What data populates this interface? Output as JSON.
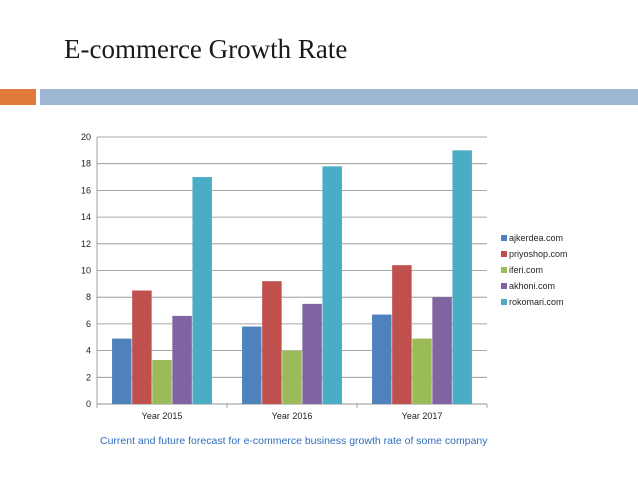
{
  "slide": {
    "title": "E-commerce Growth Rate",
    "caption": "Current and future forecast for e-commerce business growth rate of some company"
  },
  "colors": {
    "accent_orange": "#e07b39",
    "accent_blue": "#9db6d4",
    "caption": "#2f6ebd"
  },
  "chart_data": {
    "type": "bar",
    "categories": [
      "Year 2015",
      "Year 2016",
      "Year 2017"
    ],
    "series": [
      {
        "name": "ajkerdea.com",
        "color": "#4f81bd",
        "values": [
          4.9,
          5.8,
          6.7
        ]
      },
      {
        "name": "priyoshop.com",
        "color": "#c0504d",
        "values": [
          8.5,
          9.2,
          10.4
        ]
      },
      {
        "name": "iferi.com",
        "color": "#9bbb59",
        "values": [
          3.3,
          4.0,
          4.9
        ]
      },
      {
        "name": "akhoni.com",
        "color": "#8064a2",
        "values": [
          6.6,
          7.5,
          8.0
        ]
      },
      {
        "name": "rokomari.com",
        "color": "#4bacc6",
        "values": [
          17.0,
          17.8,
          19.0
        ]
      }
    ],
    "yticks": [
      0,
      2,
      4,
      6,
      8,
      10,
      12,
      14,
      16,
      18,
      20
    ],
    "ylim": [
      0,
      20
    ],
    "grid": true,
    "legend": "right",
    "title": "",
    "xlabel": "",
    "ylabel": ""
  }
}
